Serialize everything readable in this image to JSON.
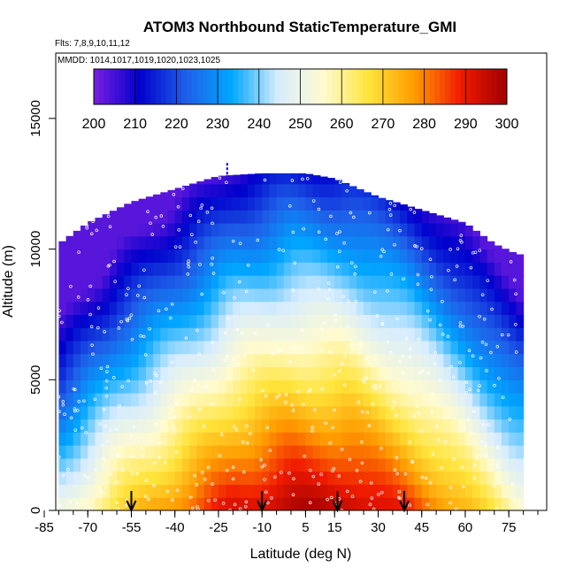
{
  "chart_data": {
    "type": "heatmap",
    "title": "ATOM3 Northbound StaticTemperature_GMI",
    "subtitle": "Flts: 7,8,9,10,11,12",
    "annotation": "MMDD: 1014,1017,1019,1020,1023,1025",
    "xlabel": "Latitude (deg N)",
    "ylabel": "Altitude (m)",
    "xlim": [
      -85,
      85
    ],
    "ylim": [
      0,
      17500
    ],
    "x_ticks": [
      -85,
      -70,
      -55,
      -40,
      -25,
      -10,
      5,
      15,
      30,
      45,
      60,
      75
    ],
    "y_ticks": [
      0,
      5000,
      10000,
      15000
    ],
    "colorbar": {
      "ticks": [
        200,
        210,
        220,
        230,
        240,
        250,
        260,
        270,
        280,
        290,
        300
      ],
      "range": [
        200,
        300
      ],
      "placement": "top"
    },
    "colors": {
      "stops": [
        "#7a1ee0",
        "#0000cc",
        "#1f5fe8",
        "#00a6ff",
        "#d6ecff",
        "#fffbd0",
        "#ffe43a",
        "#ff9a00",
        "#f01a00",
        "#a00000"
      ],
      "point_color": "#ffffff",
      "arrow_color": "#000000"
    },
    "arrow_markers_lat": [
      -55,
      -10,
      16,
      39
    ],
    "top_marker_lat": -22,
    "grid": false,
    "surface_temperature_by_lat": {
      "lat": [
        -80,
        -60,
        -40,
        -20,
        0,
        20,
        40,
        60,
        78
      ],
      "temperature": [
        250,
        268,
        280,
        292,
        298,
        297,
        288,
        274,
        258
      ]
    },
    "top_altitude_by_lat": {
      "lat": [
        -80,
        -70,
        -55,
        -40,
        -25,
        -10,
        5,
        15,
        30,
        45,
        60,
        70,
        78
      ],
      "altitude": [
        10200,
        11000,
        11800,
        12300,
        12800,
        12900,
        12900,
        12700,
        12000,
        11500,
        11000,
        10200,
        9800
      ]
    }
  }
}
